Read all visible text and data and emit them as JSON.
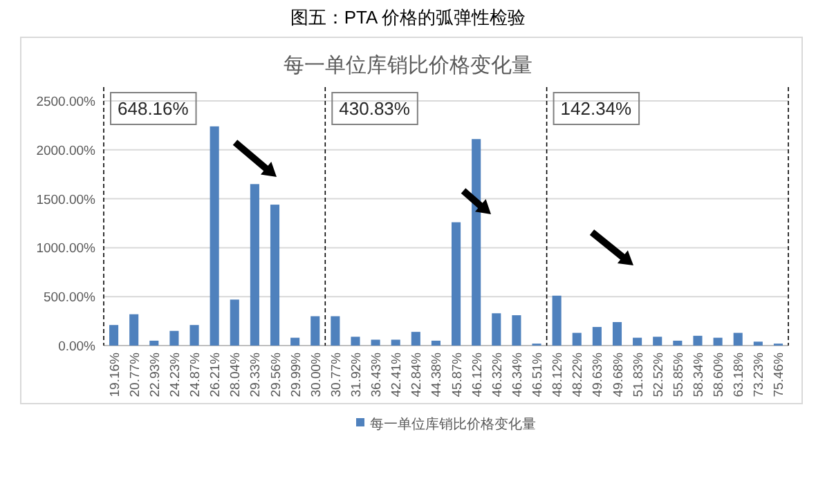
{
  "chart_data": {
    "type": "bar",
    "title": "图五：PTA 价格的弧弹性检验",
    "subtitle": "每一单位库销比价格变化量",
    "categories": [
      "19.16%",
      "20.77%",
      "22.93%",
      "24.23%",
      "24.87%",
      "26.21%",
      "28.04%",
      "29.33%",
      "29.56%",
      "29.99%",
      "30.00%",
      "30.77%",
      "31.92%",
      "36.43%",
      "42.41%",
      "42.84%",
      "44.38%",
      "45.87%",
      "46.12%",
      "46.32%",
      "46.34%",
      "46.51%",
      "48.12%",
      "48.22%",
      "49.63%",
      "49.68%",
      "51.83%",
      "52.52%",
      "55.85%",
      "58.34%",
      "58.60%",
      "63.18%",
      "73.23%",
      "75.46%"
    ],
    "series": [
      {
        "name": "每一单位库销比价格变化量",
        "color": "#4f81bd",
        "values": [
          210,
          320,
          50,
          150,
          210,
          2240,
          470,
          1650,
          1440,
          80,
          300,
          300,
          90,
          60,
          60,
          140,
          50,
          1260,
          2110,
          330,
          310,
          20,
          510,
          130,
          190,
          240,
          80,
          90,
          50,
          100,
          80,
          130,
          40,
          20
        ]
      }
    ],
    "ylim": [
      0,
      2500
    ],
    "yticks": [
      {
        "value": 0,
        "label": "0.00%"
      },
      {
        "value": 500,
        "label": "500.00%"
      },
      {
        "value": 1000,
        "label": "1000.00%"
      },
      {
        "value": 1500,
        "label": "1500.00%"
      },
      {
        "value": 2000,
        "label": "2000.00%"
      },
      {
        "value": 2500,
        "label": "2500.00%"
      }
    ],
    "grid": "y",
    "legend": "bottom",
    "annotations": [
      "648.16%",
      "430.83%",
      "142.34%"
    ]
  }
}
